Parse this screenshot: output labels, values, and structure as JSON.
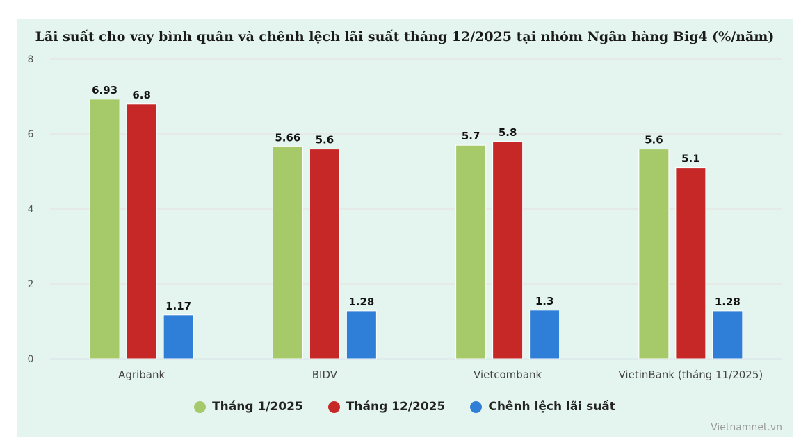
{
  "title": "Lãi suất cho vay bình quân và chênh lệch lãi suất tháng 12/2025 tại nhóm Ngân hàng Big4 (%/năm)",
  "source": "Vietnamnet.vn",
  "chart_data": {
    "type": "bar",
    "title": "Lãi suất cho vay bình quân và chênh lệch lãi suất tháng 12/2025 tại nhóm Ngân hàng Big4 (%/năm)",
    "categories": [
      "Agribank",
      "BIDV",
      "Vietcombank",
      "VietinBank (tháng 11/2025)"
    ],
    "series": [
      {
        "name": "Tháng 1/2025",
        "color": "#a6c96a",
        "values": [
          6.93,
          5.66,
          5.7,
          5.6
        ],
        "labels": [
          "6.93",
          "5.66",
          "5.7",
          "5.6"
        ]
      },
      {
        "name": "Tháng 12/2025",
        "color": "#c62828",
        "values": [
          6.8,
          5.6,
          5.8,
          5.1
        ],
        "labels": [
          "6.8",
          "5.6",
          "5.8",
          "5.1"
        ]
      },
      {
        "name": "Chênh lệch lãi suất",
        "color": "#2f7ed8",
        "values": [
          1.17,
          1.28,
          1.3,
          1.28
        ],
        "labels": [
          "1.17",
          "1.28",
          "1.3",
          "1.28"
        ]
      }
    ],
    "yticks": [
      "0",
      "2",
      "4",
      "6",
      "8"
    ],
    "ylim": [
      0,
      8
    ],
    "grid": true,
    "legend_position": "bottom"
  }
}
